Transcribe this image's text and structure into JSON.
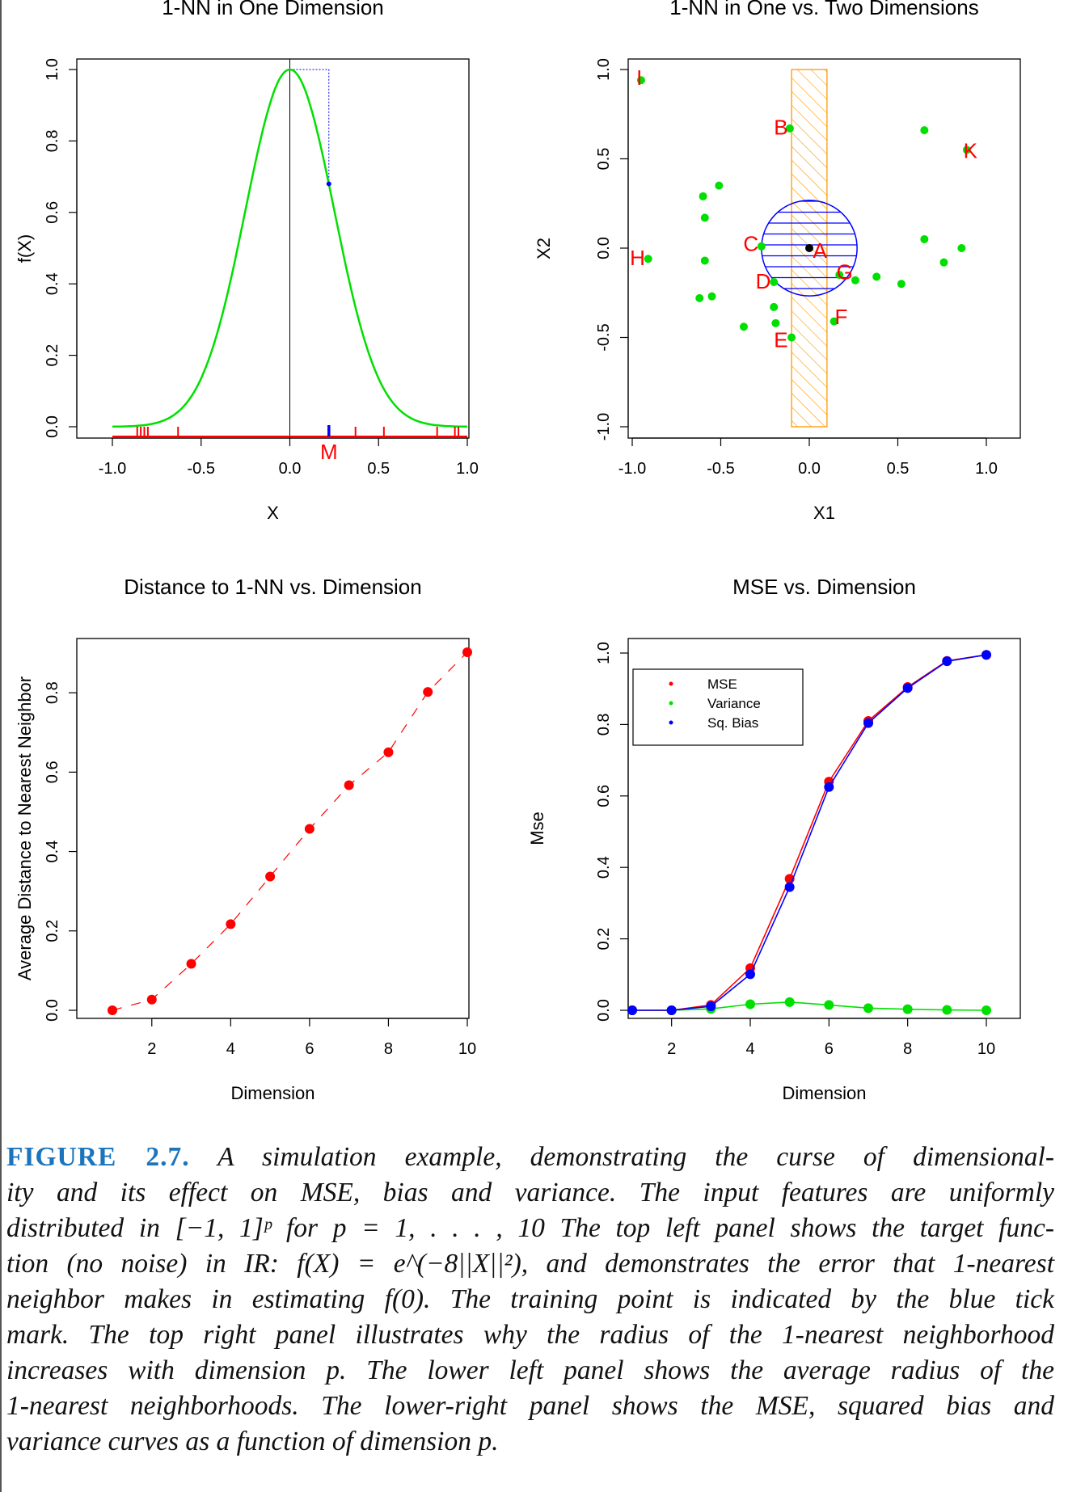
{
  "colors": {
    "red": "#ff0000",
    "green": "#00e000",
    "blue": "#0000ff",
    "orange": "#ff9900",
    "axis": "#000000",
    "caption_label": "#1c75bc"
  },
  "chart_data": [
    {
      "id": "top-left",
      "type": "line",
      "title": "1-NN in One Dimension",
      "xlabel": "X",
      "ylabel": "f(X)",
      "xlim": [
        -1.0,
        1.0
      ],
      "ylim": [
        0.0,
        1.0
      ],
      "xticks": [
        "-1.0",
        "-0.5",
        "0.0",
        "0.5",
        "1.0"
      ],
      "yticks": [
        "0.0",
        "0.2",
        "0.4",
        "0.6",
        "0.8",
        "1.0"
      ],
      "function": "exp(-8*x^2)",
      "training_ticks_x": [
        -0.86,
        -0.84,
        -0.82,
        -0.8,
        -0.63,
        0.37,
        0.53,
        0.83,
        0.93,
        0.95
      ],
      "nearest_x": 0.22,
      "nearest_fx": 0.68,
      "nearest_label": "M"
    },
    {
      "id": "top-right",
      "type": "scatter",
      "title": "1-NN in One vs. Two Dimensions",
      "xlabel": "X1",
      "ylabel": "X2",
      "xlim": [
        -1.0,
        1.0
      ],
      "ylim": [
        -1.0,
        1.0
      ],
      "xticks": [
        "-1.0",
        "-0.5",
        "0.0",
        "0.5",
        "1.0"
      ],
      "yticks": [
        "-1.0",
        "-0.5",
        "0.0",
        "0.5",
        "1.0"
      ],
      "target_point": {
        "x": 0.0,
        "y": 0.0
      },
      "circle_radius": 0.27,
      "strip_x": [
        -0.1,
        0.1
      ],
      "points": [
        {
          "x": -0.95,
          "y": 0.94
        },
        {
          "x": -0.11,
          "y": 0.67
        },
        {
          "x": 0.65,
          "y": 0.66
        },
        {
          "x": 0.89,
          "y": 0.55
        },
        {
          "x": -0.51,
          "y": 0.35
        },
        {
          "x": -0.6,
          "y": 0.29
        },
        {
          "x": -0.59,
          "y": 0.17
        },
        {
          "x": -0.27,
          "y": 0.01
        },
        {
          "x": 0.65,
          "y": 0.05
        },
        {
          "x": 0.86,
          "y": 0.0
        },
        {
          "x": -0.91,
          "y": -0.06
        },
        {
          "x": -0.59,
          "y": -0.07
        },
        {
          "x": 0.76,
          "y": -0.08
        },
        {
          "x": 0.17,
          "y": -0.15
        },
        {
          "x": 0.26,
          "y": -0.18
        },
        {
          "x": 0.38,
          "y": -0.16
        },
        {
          "x": 0.52,
          "y": -0.2
        },
        {
          "x": -0.2,
          "y": -0.19
        },
        {
          "x": -0.62,
          "y": -0.28
        },
        {
          "x": -0.55,
          "y": -0.27
        },
        {
          "x": -0.2,
          "y": -0.33
        },
        {
          "x": 0.14,
          "y": -0.41
        },
        {
          "x": -0.37,
          "y": -0.44
        },
        {
          "x": -0.19,
          "y": -0.42
        },
        {
          "x": -0.1,
          "y": -0.5
        }
      ],
      "point_labels": [
        {
          "text": "I",
          "x": -0.96,
          "y": 0.96
        },
        {
          "text": "B",
          "x": -0.16,
          "y": 0.68
        },
        {
          "text": "K",
          "x": 0.91,
          "y": 0.55
        },
        {
          "text": "C",
          "x": -0.33,
          "y": 0.03
        },
        {
          "text": "A",
          "x": 0.06,
          "y": -0.01
        },
        {
          "text": "H",
          "x": -0.97,
          "y": -0.05
        },
        {
          "text": "G",
          "x": 0.2,
          "y": -0.13
        },
        {
          "text": "D",
          "x": -0.26,
          "y": -0.18
        },
        {
          "text": "F",
          "x": 0.18,
          "y": -0.38
        },
        {
          "text": "E",
          "x": -0.16,
          "y": -0.51
        }
      ]
    },
    {
      "id": "bottom-left",
      "type": "scatter",
      "title": "Distance to 1-NN vs. Dimension",
      "xlabel": "Dimension",
      "ylabel": "Average Distance to Nearest Neighbor",
      "xlim": [
        1,
        10
      ],
      "ylim": [
        0.0,
        0.9
      ],
      "xticks": [
        "2",
        "4",
        "6",
        "8",
        "10"
      ],
      "yticks": [
        "0.0",
        "0.2",
        "0.4",
        "0.6",
        "0.8"
      ],
      "x": [
        1,
        2,
        3,
        4,
        5,
        6,
        7,
        8,
        9,
        10
      ],
      "values": [
        0.0,
        0.027,
        0.117,
        0.217,
        0.337,
        0.457,
        0.567,
        0.65,
        0.802,
        0.902
      ]
    },
    {
      "id": "bottom-right",
      "type": "line",
      "title": "MSE vs. Dimension",
      "xlabel": "Dimension",
      "ylabel": "Mse",
      "xlim": [
        1,
        10
      ],
      "ylim": [
        0.0,
        1.0
      ],
      "xticks": [
        "2",
        "4",
        "6",
        "8",
        "10"
      ],
      "yticks": [
        "0.0",
        "0.2",
        "0.4",
        "0.6",
        "0.8",
        "1.0"
      ],
      "x": [
        1,
        2,
        3,
        4,
        5,
        6,
        7,
        8,
        9,
        10
      ],
      "series": [
        {
          "name": "MSE",
          "color": "#ff0000",
          "values": [
            0.0,
            0.0,
            0.015,
            0.118,
            0.368,
            0.64,
            0.81,
            0.905,
            0.978,
            0.995
          ]
        },
        {
          "name": "Variance",
          "color": "#00e000",
          "values": [
            0.0,
            0.0,
            0.004,
            0.017,
            0.023,
            0.015,
            0.006,
            0.003,
            0.001,
            0.0
          ]
        },
        {
          "name": "Sq. Bias",
          "color": "#0000ff",
          "values": [
            0.0,
            0.0,
            0.011,
            0.101,
            0.345,
            0.625,
            0.804,
            0.902,
            0.977,
            0.995
          ]
        }
      ],
      "legend_position": "top-left"
    }
  ],
  "caption": {
    "label": "FIGURE 2.7.",
    "lines": [
      "A simulation example, demonstrating the curse of dimensional-",
      "ity and its effect on MSE, bias and variance. The input features are uniformly",
      "distributed in [−1, 1]ᵖ for p = 1, . . . , 10 The top left panel shows the target func-",
      "tion (no noise) in IR: f(X) = e^(−8||X||²), and demonstrates the error that 1-nearest",
      "neighbor makes in estimating f(0). The training point is indicated by the blue tick",
      "mark. The top right panel illustrates why the radius of the 1-nearest neighborhood",
      "increases with dimension p. The lower left panel shows the average radius of the",
      "1-nearest neighborhoods. The lower-right panel shows the MSE, squared bias and",
      "variance curves as a function of dimension p."
    ]
  }
}
